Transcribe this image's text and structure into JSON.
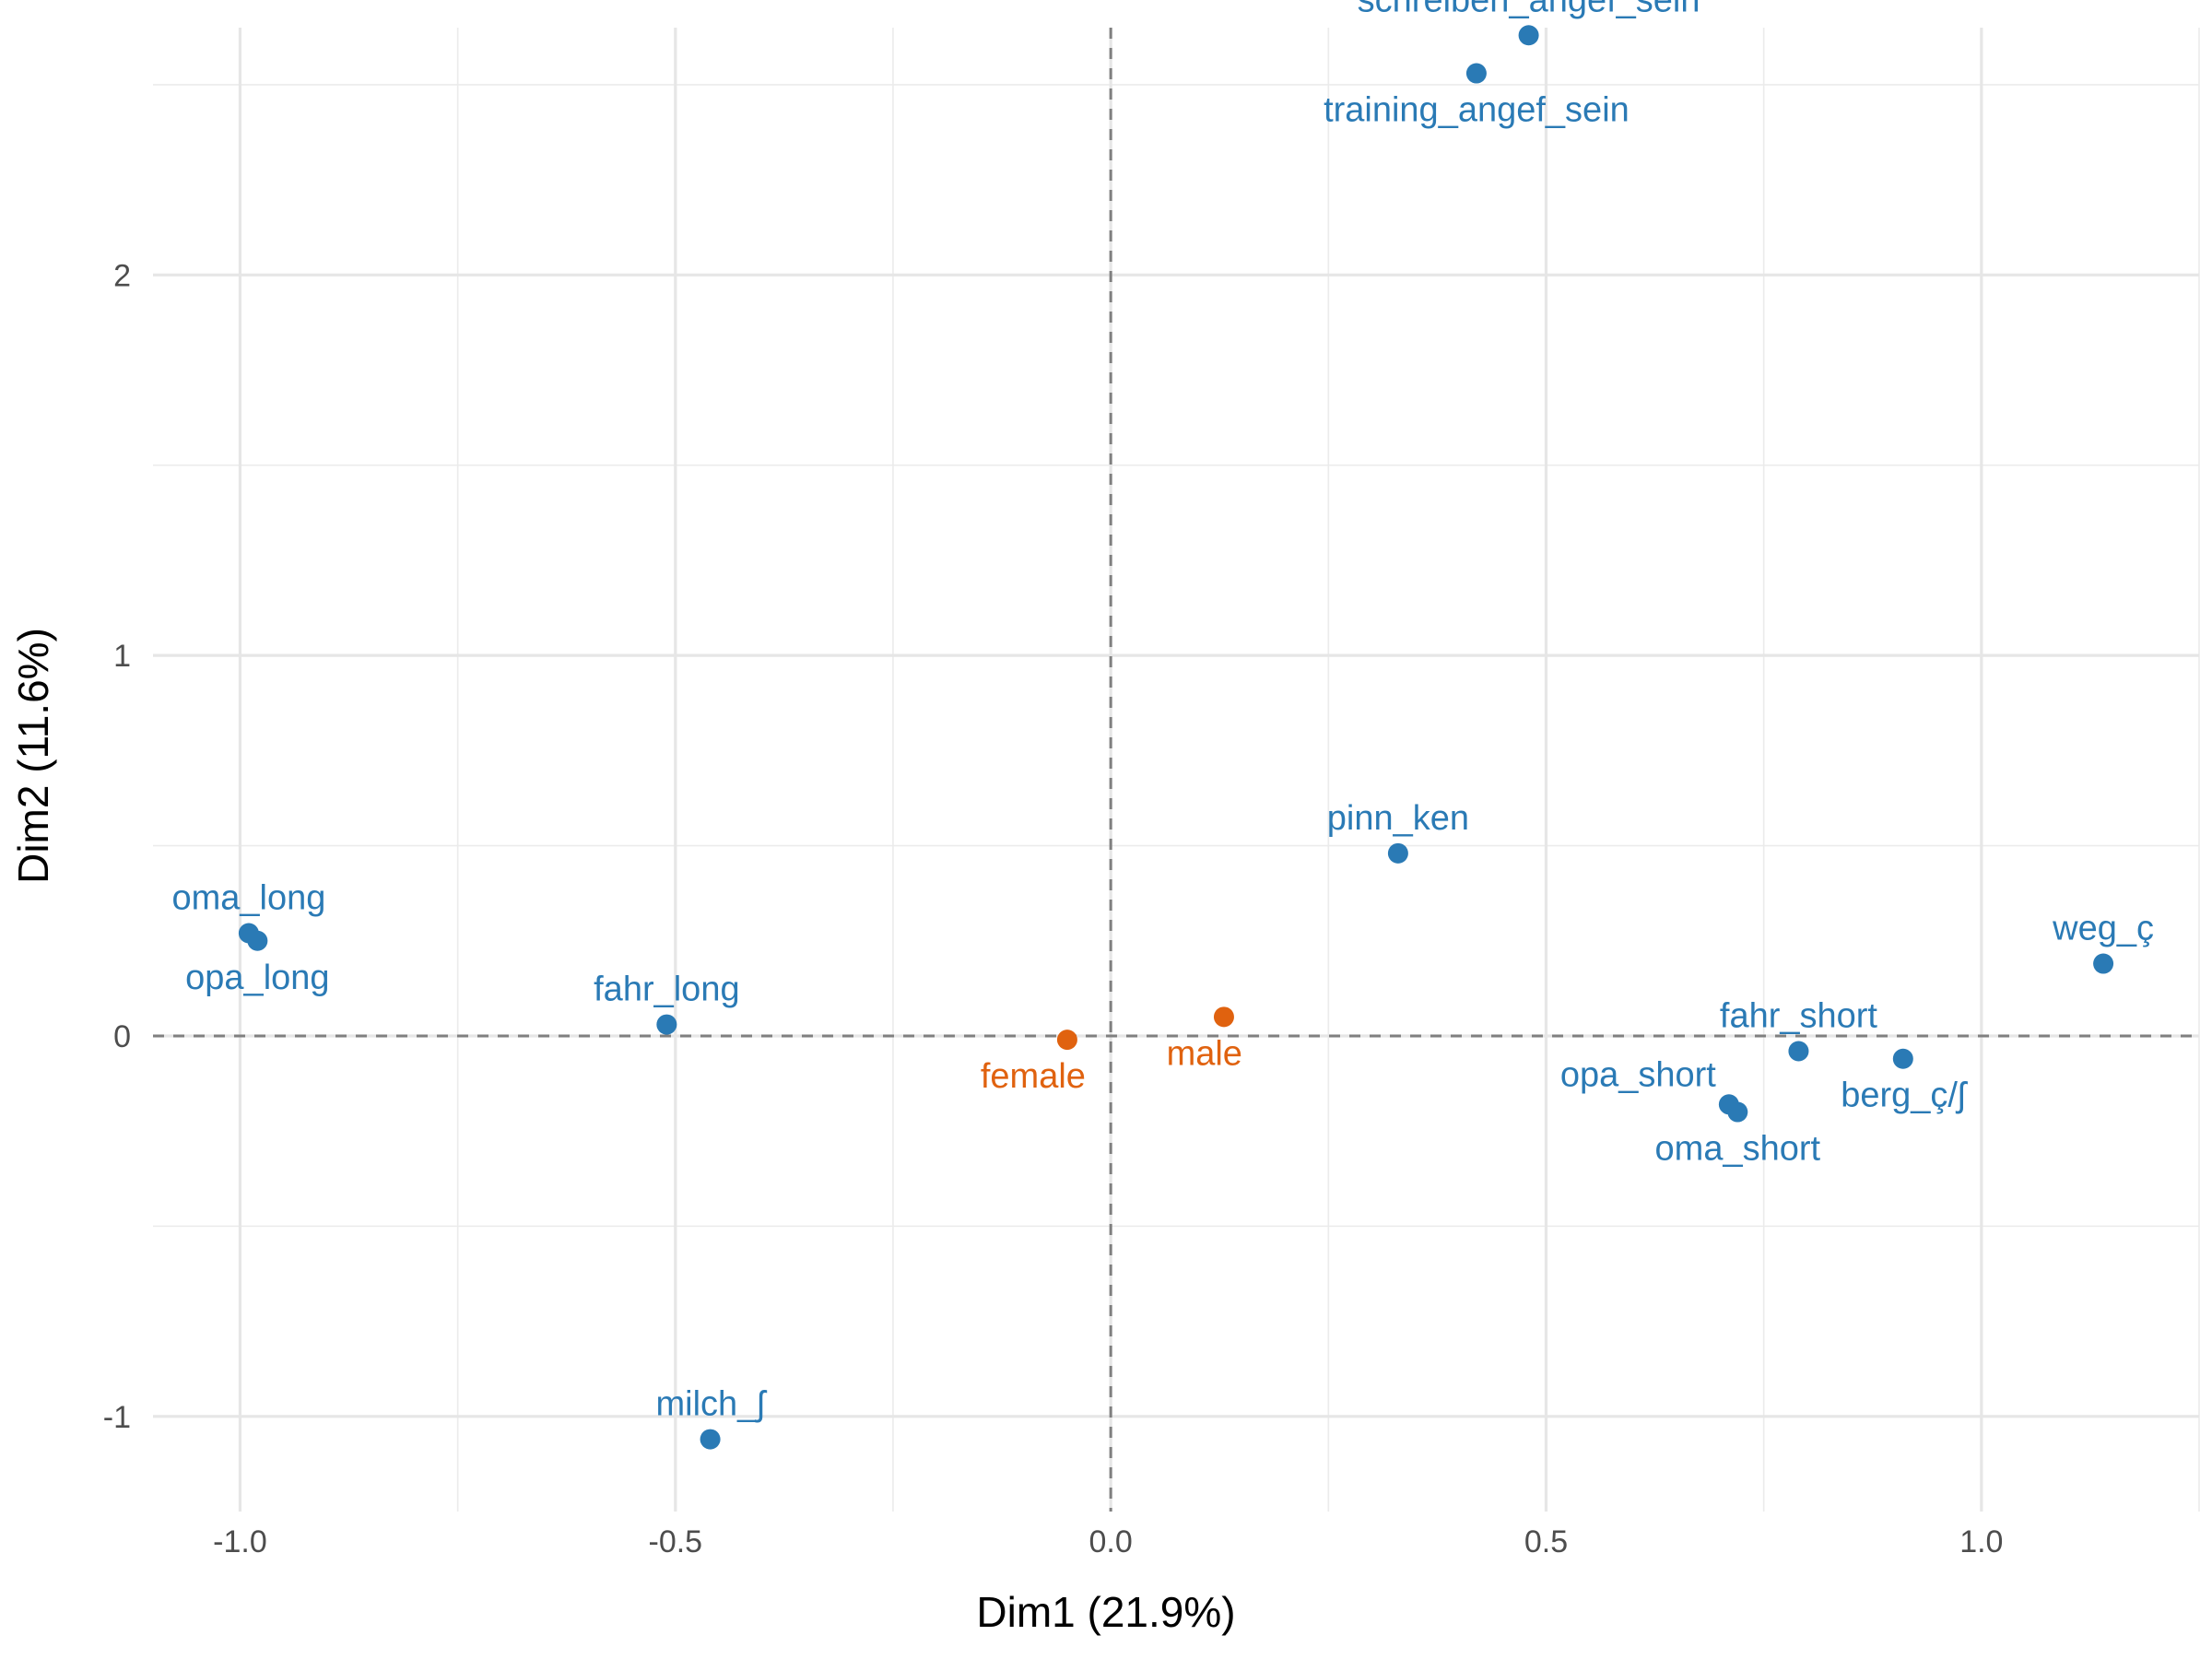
{
  "chart_data": {
    "type": "scatter",
    "title": "",
    "xlabel": "Dim1 (21.9%)",
    "ylabel": "Dim2 (11.6%)",
    "xlim": [
      -1.1,
      1.25
    ],
    "ylim": [
      -1.25,
      2.65
    ],
    "x_ticks": [
      {
        "value": -1.0,
        "label": "-1.0"
      },
      {
        "value": -0.5,
        "label": "-0.5"
      },
      {
        "value": 0.0,
        "label": "0.0"
      },
      {
        "value": 0.5,
        "label": "0.5"
      },
      {
        "value": 1.0,
        "label": "1.0"
      }
    ],
    "y_ticks": [
      {
        "value": -1,
        "label": "-1"
      },
      {
        "value": 0,
        "label": "0"
      },
      {
        "value": 1,
        "label": "1"
      },
      {
        "value": 2,
        "label": "2"
      }
    ],
    "grid": true,
    "reference_lines": {
      "x": 0,
      "y": 0,
      "style": "dashed"
    },
    "colors": {
      "variables": "#2a7ab5",
      "supplementary": "#e0620f"
    },
    "series": [
      {
        "color": "#2a7ab5",
        "points": [
          {
            "label": "schreiben_angef_sein",
            "x": 0.48,
            "y": 2.63,
            "label_pos": "above"
          },
          {
            "label": "training_angef_sein",
            "x": 0.42,
            "y": 2.53,
            "label_pos": "below"
          },
          {
            "label": "pinn_ken",
            "x": 0.33,
            "y": 0.48,
            "label_pos": "above"
          },
          {
            "label": "oma_long",
            "x": -0.99,
            "y": 0.27,
            "label_pos": "above"
          },
          {
            "label": "opa_long",
            "x": -0.98,
            "y": 0.25,
            "label_pos": "below"
          },
          {
            "label": "fahr_long",
            "x": -0.51,
            "y": 0.03,
            "label_pos": "above"
          },
          {
            "label": "milch_ʃ",
            "x": -0.46,
            "y": -1.06,
            "label_pos": "above"
          },
          {
            "label": "weg_ç",
            "x": 1.14,
            "y": 0.19,
            "label_pos": "above"
          },
          {
            "label": "fahr_short",
            "x": 0.79,
            "y": -0.04,
            "label_pos": "above"
          },
          {
            "label": "berg_ç/ʃ",
            "x": 0.91,
            "y": -0.06,
            "label_pos": "below"
          },
          {
            "label": "opa_short",
            "x": 0.71,
            "y": -0.18,
            "label_pos": "above-left"
          },
          {
            "label": "oma_short",
            "x": 0.72,
            "y": -0.2,
            "label_pos": "below"
          }
        ]
      },
      {
        "color": "#e0620f",
        "points": [
          {
            "label": "female",
            "x": -0.05,
            "y": -0.01,
            "label_pos": "below-left"
          },
          {
            "label": "male",
            "x": 0.13,
            "y": 0.05,
            "label_pos": "below-left"
          }
        ]
      }
    ]
  }
}
